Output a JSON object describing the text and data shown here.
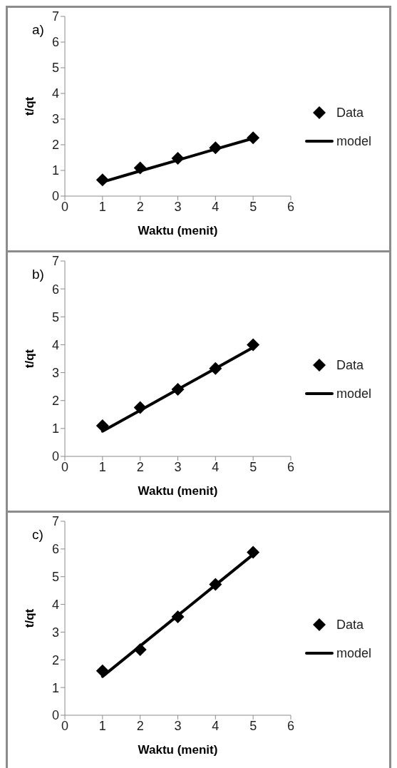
{
  "chart_data": [
    {
      "type": "line",
      "xlabel": "Waktu (menit)",
      "ylabel": "t/qt",
      "annotations": [
        "a)"
      ],
      "x": [
        1,
        2,
        3,
        4,
        5
      ],
      "xlim": [
        0,
        6
      ],
      "xticks": [
        0,
        1,
        2,
        3,
        4,
        5,
        6
      ],
      "ylim": [
        0,
        7
      ],
      "yticks": [
        0,
        1,
        2,
        3,
        4,
        5,
        6,
        7
      ],
      "legend": "right",
      "series": [
        {
          "name": "Data",
          "type": "scatter",
          "marker": "diamond",
          "color": "#000000",
          "values": [
            0.63,
            1.1,
            1.47,
            1.88,
            2.27
          ]
        },
        {
          "name": "model",
          "type": "line",
          "marker": "none",
          "line_style": "solid",
          "color": "#000000",
          "values": [
            0.55,
            0.98,
            1.4,
            1.83,
            2.25
          ]
        }
      ]
    },
    {
      "type": "line",
      "xlabel": "Waktu (menit)",
      "ylabel": "t/qt",
      "annotations": [
        "b)"
      ],
      "x": [
        1,
        2,
        3,
        4,
        5
      ],
      "xlim": [
        0,
        6
      ],
      "xticks": [
        0,
        1,
        2,
        3,
        4,
        5,
        6
      ],
      "ylim": [
        0,
        7
      ],
      "yticks": [
        0,
        1,
        2,
        3,
        4,
        5,
        6,
        7
      ],
      "legend": "right",
      "series": [
        {
          "name": "Data",
          "type": "scatter",
          "marker": "diamond",
          "color": "#000000",
          "values": [
            1.1,
            1.75,
            2.4,
            3.15,
            4.0
          ]
        },
        {
          "name": "model",
          "type": "line",
          "marker": "none",
          "line_style": "solid",
          "color": "#000000",
          "values": [
            0.9,
            1.65,
            2.4,
            3.15,
            3.9
          ]
        }
      ]
    },
    {
      "type": "line",
      "xlabel": "Waktu (menit)",
      "ylabel": "t/qt",
      "annotations": [
        "c)"
      ],
      "x": [
        1,
        2,
        3,
        4,
        5
      ],
      "xlim": [
        0,
        6
      ],
      "xticks": [
        0,
        1,
        2,
        3,
        4,
        5,
        6
      ],
      "ylim": [
        0,
        7
      ],
      "yticks": [
        0,
        1,
        2,
        3,
        4,
        5,
        6,
        7
      ],
      "legend": "right",
      "series": [
        {
          "name": "Data",
          "type": "scatter",
          "marker": "diamond",
          "color": "#000000",
          "values": [
            1.6,
            2.37,
            3.55,
            4.72,
            5.88
          ]
        },
        {
          "name": "model",
          "type": "line",
          "marker": "none",
          "line_style": "solid",
          "color": "#000000",
          "values": [
            1.4,
            2.5,
            3.6,
            4.7,
            5.8
          ]
        }
      ]
    }
  ]
}
